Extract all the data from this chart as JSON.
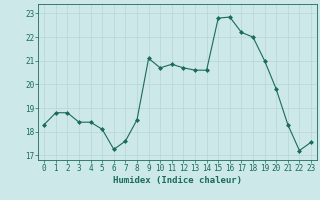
{
  "x": [
    0,
    1,
    2,
    3,
    4,
    5,
    6,
    7,
    8,
    9,
    10,
    11,
    12,
    13,
    14,
    15,
    16,
    17,
    18,
    19,
    20,
    21,
    22,
    23
  ],
  "y": [
    18.3,
    18.8,
    18.8,
    18.4,
    18.4,
    18.1,
    17.25,
    17.6,
    18.5,
    21.1,
    20.7,
    20.85,
    20.7,
    20.6,
    20.6,
    22.8,
    22.85,
    22.2,
    22.0,
    21.0,
    19.8,
    18.3,
    17.2,
    17.55
  ],
  "line_color": "#1a6b5a",
  "marker": "D",
  "marker_size": 2.0,
  "bg_color": "#cce8e8",
  "grid_color": "#b8d4d4",
  "xlabel": "Humidex (Indice chaleur)",
  "xlim": [
    -0.5,
    23.5
  ],
  "ylim": [
    16.8,
    23.4
  ],
  "yticks": [
    17,
    18,
    19,
    20,
    21,
    22,
    23
  ],
  "xticks": [
    0,
    1,
    2,
    3,
    4,
    5,
    6,
    7,
    8,
    9,
    10,
    11,
    12,
    13,
    14,
    15,
    16,
    17,
    18,
    19,
    20,
    21,
    22,
    23
  ],
  "tick_color": "#1a6b5a",
  "label_fontsize": 6.5,
  "tick_fontsize": 5.5
}
